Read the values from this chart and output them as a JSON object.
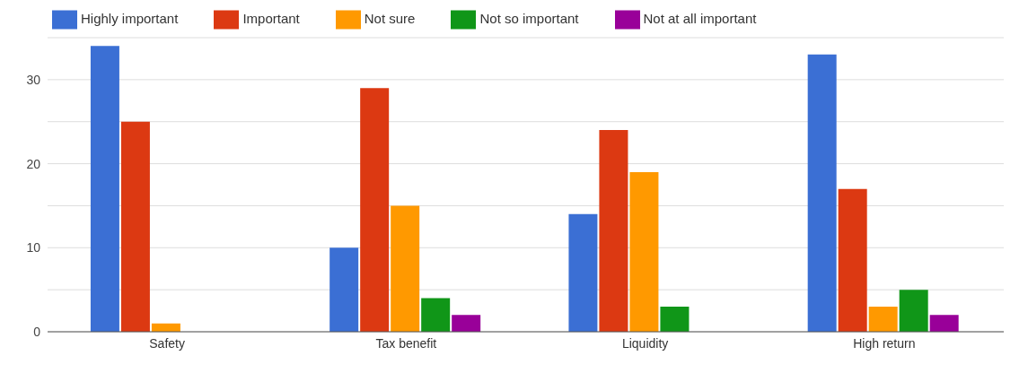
{
  "chart_data": {
    "type": "bar",
    "categories": [
      "Safety",
      "Tax benefit",
      "Liquidity",
      "High return"
    ],
    "series": [
      {
        "name": "Highly important",
        "color": "#3b6fd4",
        "values": [
          34,
          10,
          14,
          33
        ]
      },
      {
        "name": "Important",
        "color": "#dc3912",
        "values": [
          25,
          29,
          24,
          17
        ]
      },
      {
        "name": "Not sure",
        "color": "#ff9900",
        "values": [
          1,
          15,
          19,
          3
        ]
      },
      {
        "name": "Not so important",
        "color": "#109618",
        "values": [
          0,
          4,
          3,
          5
        ]
      },
      {
        "name": "Not at all important",
        "color": "#990099",
        "values": [
          0,
          2,
          0,
          2
        ]
      }
    ],
    "ylim": [
      0,
      35
    ],
    "yticks": [
      0,
      {
        "value": 5,
        "label": null
      },
      10,
      {
        "value": 15,
        "label": null
      },
      20,
      {
        "value": 25,
        "label": null
      },
      30,
      {
        "value": 35,
        "label": null
      }
    ],
    "grid": "y",
    "legend": "top left"
  }
}
